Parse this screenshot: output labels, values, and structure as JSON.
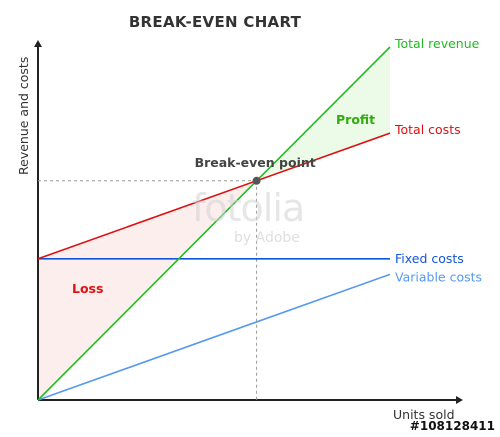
{
  "chart_data": {
    "type": "line",
    "title": "BREAK-EVEN CHART",
    "xlabel": "Units sold",
    "ylabel": "Revenue and costs",
    "xlim": [
      0,
      1
    ],
    "ylim": [
      0,
      1
    ],
    "grid": false,
    "series": [
      {
        "name": "Total revenue",
        "color": "#22bb22",
        "x": [
          0,
          1
        ],
        "y": [
          0,
          1
        ]
      },
      {
        "name": "Total costs",
        "color": "#dd1111",
        "x": [
          0,
          1
        ],
        "y": [
          0.4,
          0.756
        ]
      },
      {
        "name": "Fixed costs",
        "color": "#1155dd",
        "x": [
          0,
          1
        ],
        "y": [
          0.4,
          0.4
        ]
      },
      {
        "name": "Variable costs",
        "color": "#5599ee",
        "x": [
          0,
          1
        ],
        "y": [
          0,
          0.356
        ]
      }
    ],
    "break_even": {
      "label": "Break-even point",
      "x": 0.621,
      "y": 0.621
    },
    "regions": [
      {
        "label": "Loss",
        "color": "#dd1111"
      },
      {
        "label": "Profit",
        "color": "#33aa11"
      }
    ]
  },
  "watermark": {
    "text": "fotolia",
    "sub": "by Adobe"
  },
  "stock_id": "#108128411"
}
